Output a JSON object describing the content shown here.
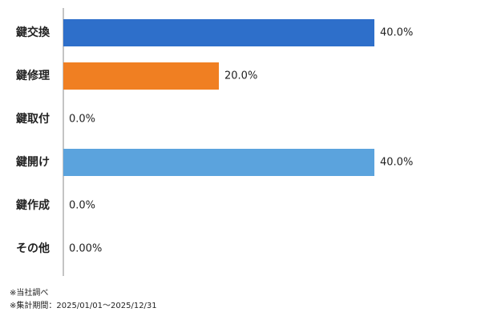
{
  "chart_data": {
    "type": "bar",
    "orientation": "horizontal",
    "categories": [
      "鍵交換",
      "鍵修理",
      "鍵取付",
      "鍵開け",
      "鍵作成",
      "その他"
    ],
    "values": [
      40,
      20,
      0,
      40,
      0,
      0
    ],
    "value_labels": [
      "40.0%",
      "20.0%",
      "0.0%",
      "40.0%",
      "0.0%",
      "0.00%"
    ],
    "colors": [
      "#2e6fca",
      "#f07f22",
      null,
      "#5ba3dd",
      null,
      null
    ],
    "notes": [
      "※当社調べ",
      "※集計期間：2025/01/01～2025/12/31"
    ]
  }
}
